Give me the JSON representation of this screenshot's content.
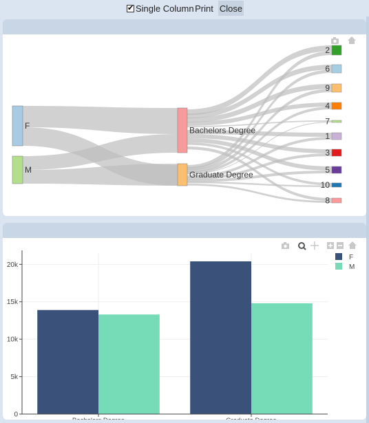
{
  "toolbar": {
    "single_column_label": "Single Column",
    "single_column_checked": true,
    "print_label": "Print",
    "close_label": "Close"
  },
  "sankey": {
    "sources": [
      {
        "label": "F",
        "color": "#a6cbe3"
      },
      {
        "label": "M",
        "color": "#b2df8a"
      }
    ],
    "middles": [
      {
        "label": "Bachelors Degree",
        "color": "#f79a9a"
      },
      {
        "label": "Graduate Degree",
        "color": "#fbbf6f"
      }
    ],
    "targets": [
      {
        "label": "2",
        "color": "#33a02c"
      },
      {
        "label": "6",
        "color": "#a6cee3"
      },
      {
        "label": "9",
        "color": "#fdbf6f"
      },
      {
        "label": "4",
        "color": "#ff7f00"
      },
      {
        "label": "7",
        "color": "#b2df8a"
      },
      {
        "label": "1",
        "color": "#cab2d6"
      },
      {
        "label": "3",
        "color": "#e31a1c"
      },
      {
        "label": "5",
        "color": "#6a3d9a"
      },
      {
        "label": "10",
        "color": "#1f78b4"
      },
      {
        "label": "8",
        "color": "#fb9a99"
      }
    ]
  },
  "chart_data": {
    "type": "bar",
    "categories": [
      "Bachelors Degree",
      "Graduate Degree"
    ],
    "series": [
      {
        "name": "F",
        "color": "#3a5179",
        "values": [
          13900,
          20400
        ]
      },
      {
        "name": "M",
        "color": "#76dbb7",
        "values": [
          13300,
          14800
        ]
      }
    ],
    "ylim": [
      0,
      21500
    ],
    "yticks": [
      0,
      5000,
      10000,
      15000,
      20000
    ],
    "ytick_labels": [
      "0",
      "5k",
      "10k",
      "15k",
      "20k"
    ],
    "legend_position": "top-right",
    "grid": true
  }
}
